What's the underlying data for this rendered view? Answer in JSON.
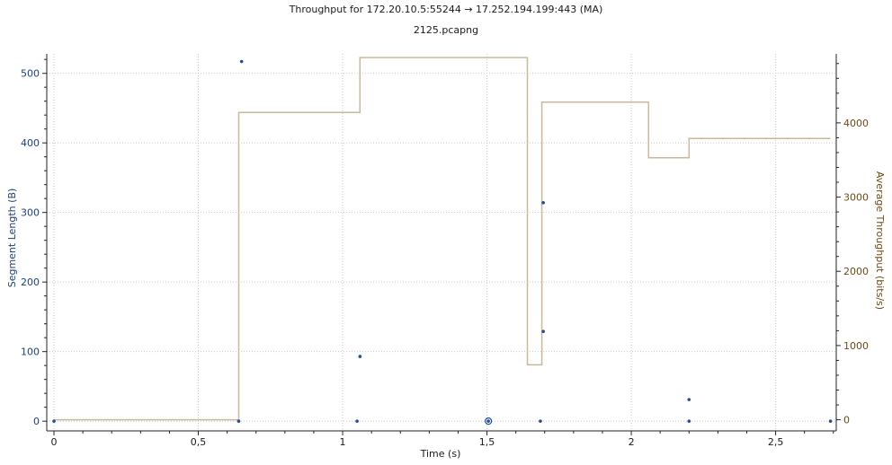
{
  "title": "Throughput for 172.20.10.5:55244 → 17.252.194.199:443 (MA)",
  "subtitle": "2125.pcapng",
  "colors": {
    "segment": "#1f4e9a",
    "throughput": "#c9b99a",
    "left_axis": "#1c3f7a",
    "right_axis": "#6b4a10",
    "grid": "#c8c8c8"
  },
  "chart_data": {
    "type": "scatter",
    "xlabel": "Time (s)",
    "ylabel_left": "Segment Length (B)",
    "ylabel_right": "Average Throughput (bits/s)",
    "xlim": [
      -0.025,
      2.71
    ],
    "ylim_left": [
      -14,
      528
    ],
    "ylim_right": [
      -150,
      4930
    ],
    "x_ticks": [
      0,
      0.5,
      1,
      1.5,
      2,
      2.5
    ],
    "x_tick_labels": [
      "0",
      "0,5",
      "1",
      "1,5",
      "2",
      "2,5"
    ],
    "left_ticks": [
      0,
      100,
      200,
      300,
      400,
      500
    ],
    "right_ticks": [
      0,
      1000,
      2000,
      3000,
      4000
    ],
    "grid": true,
    "series": [
      {
        "name": "Segment Length",
        "axis": "left",
        "type": "scatter",
        "points": [
          {
            "x": 0.0,
            "y": 0
          },
          {
            "x": 0.64,
            "y": 0
          },
          {
            "x": 0.65,
            "y": 517
          },
          {
            "x": 1.05,
            "y": 0
          },
          {
            "x": 1.06,
            "y": 93
          },
          {
            "x": 1.505,
            "y": 0
          },
          {
            "x": 1.505,
            "y": 0
          },
          {
            "x": 1.685,
            "y": 0
          },
          {
            "x": 1.695,
            "y": 314
          },
          {
            "x": 1.695,
            "y": 129
          },
          {
            "x": 2.2,
            "y": 0
          },
          {
            "x": 2.2,
            "y": 31
          },
          {
            "x": 2.69,
            "y": 0
          }
        ]
      },
      {
        "name": "Average Throughput",
        "axis": "right",
        "type": "step",
        "points": [
          {
            "x": 0.0,
            "y": 0
          },
          {
            "x": 0.64,
            "y": 0
          },
          {
            "x": 0.64,
            "y": 4140
          },
          {
            "x": 1.06,
            "y": 4140
          },
          {
            "x": 1.06,
            "y": 4880
          },
          {
            "x": 1.64,
            "y": 4880
          },
          {
            "x": 1.64,
            "y": 740
          },
          {
            "x": 1.69,
            "y": 740
          },
          {
            "x": 1.69,
            "y": 4280
          },
          {
            "x": 2.06,
            "y": 4280
          },
          {
            "x": 2.06,
            "y": 3530
          },
          {
            "x": 2.2,
            "y": 3530
          },
          {
            "x": 2.2,
            "y": 3790
          },
          {
            "x": 2.69,
            "y": 3790
          }
        ]
      }
    ]
  }
}
